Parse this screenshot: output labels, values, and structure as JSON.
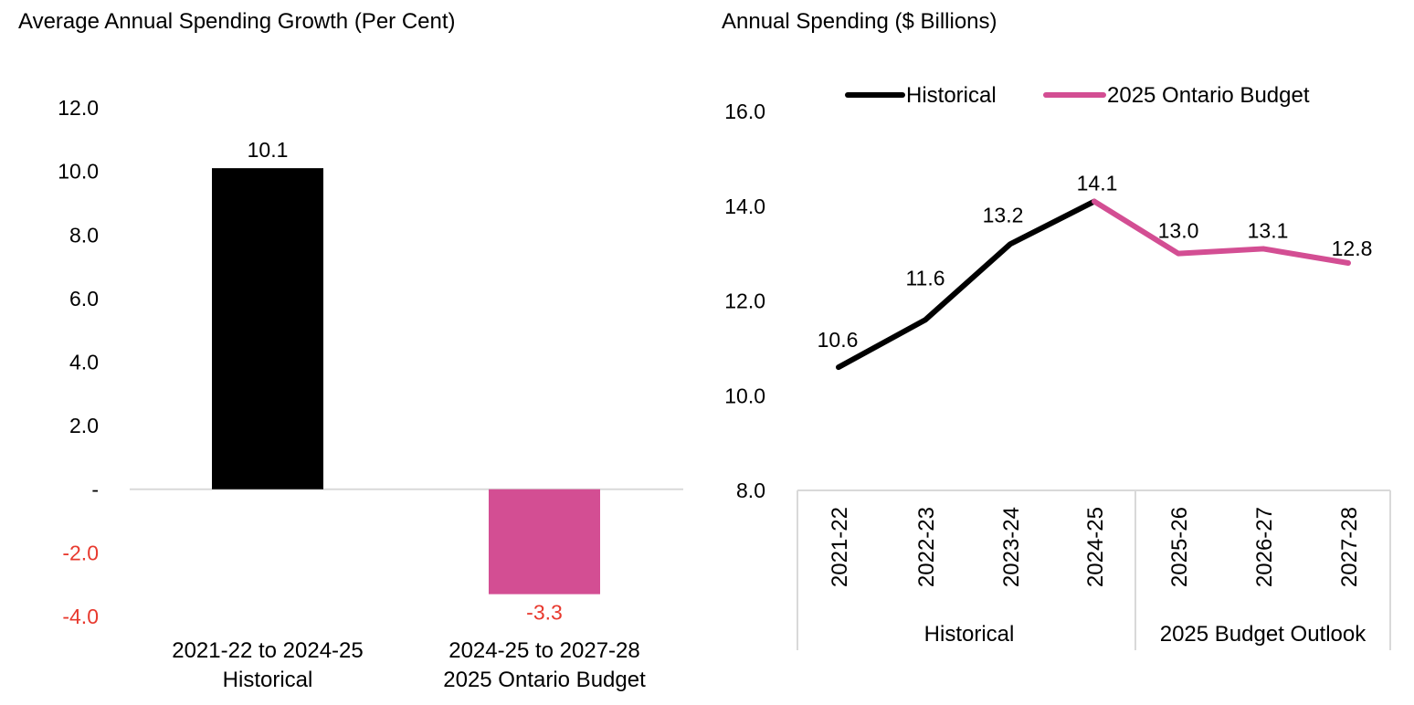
{
  "colors": {
    "historical": "#000000",
    "budget": "#d34e93",
    "negative_text": "#e8392e",
    "axis_line": "#d9d9d9"
  },
  "chart_data": [
    {
      "type": "bar",
      "title": "Average Annual Spending Growth (Per Cent)",
      "xlabel": "",
      "ylabel": "",
      "ylim": [
        -4,
        12
      ],
      "yticks": [
        12,
        10,
        8,
        6,
        4,
        2,
        0,
        -2,
        -4
      ],
      "ytick_labels": [
        "12.0",
        "10.0",
        "8.0",
        "6.0",
        "4.0",
        "2.0",
        "-",
        "-2.0",
        "-4.0"
      ],
      "categories": [
        [
          "2021-22 to 2024-25",
          "Historical"
        ],
        [
          "2024-25 to 2027-28",
          "2025 Ontario Budget"
        ]
      ],
      "values": [
        10.1,
        -3.3
      ],
      "data_labels": [
        "10.1",
        "-3.3"
      ],
      "bar_colors": [
        "#000000",
        "#d34e93"
      ],
      "grid": false,
      "legend": "none"
    },
    {
      "type": "line",
      "title": "Annual Spending ($ Billions)",
      "xlabel": "",
      "ylabel": "",
      "ylim": [
        8,
        16
      ],
      "yticks": [
        16,
        14,
        12,
        10,
        8
      ],
      "ytick_labels": [
        "16.0",
        "14.0",
        "12.0",
        "10.0",
        "8.0"
      ],
      "x": [
        "2021-22",
        "2022-23",
        "2023-24",
        "2024-25",
        "2025-26",
        "2026-27",
        "2027-28"
      ],
      "x_groups": [
        {
          "label": "Historical",
          "span": [
            "2021-22",
            "2024-25"
          ]
        },
        {
          "label": "2025 Budget Outlook",
          "span": [
            "2025-26",
            "2027-28"
          ]
        }
      ],
      "series": [
        {
          "name": "Historical",
          "color": "#000000",
          "x": [
            "2021-22",
            "2022-23",
            "2023-24",
            "2024-25"
          ],
          "values": [
            10.6,
            11.6,
            13.2,
            14.1
          ]
        },
        {
          "name": "2025 Ontario Budget",
          "color": "#d34e93",
          "x": [
            "2024-25",
            "2025-26",
            "2026-27",
            "2027-28"
          ],
          "values": [
            14.1,
            13.0,
            13.1,
            12.8
          ]
        }
      ],
      "data_labels": [
        "10.6",
        "11.6",
        "13.2",
        "14.1",
        "13.0",
        "13.1",
        "12.8"
      ],
      "grid": false,
      "legend": "top"
    }
  ]
}
